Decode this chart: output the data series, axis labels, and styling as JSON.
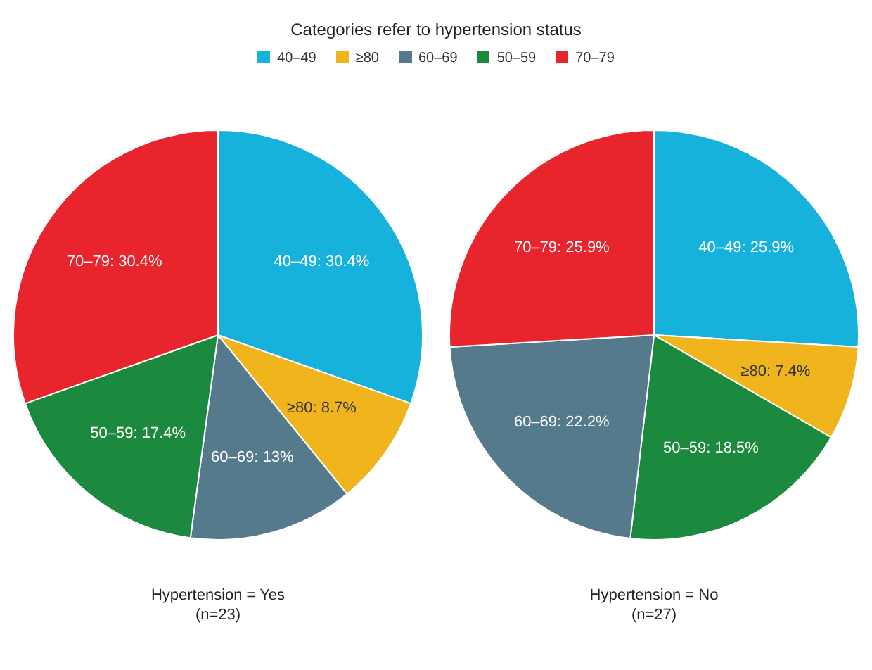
{
  "chart_data": [
    {
      "type": "pie",
      "title": "Categories refer to hypertension status",
      "legend": "top",
      "xlabel": "Hypertension = Yes\n(n=23)",
      "categories": [
        "40–49",
        "≥80",
        "60–69",
        "50–59",
        "70–79"
      ],
      "values": [
        30.4,
        8.7,
        13,
        17.4,
        30.4
      ],
      "colors": [
        "#17b2dc",
        "#f0b41c",
        "#557a8c",
        "#1b8a3e",
        "#e8242c"
      ],
      "value_labels": [
        "40–49: 30.4%",
        "≥80: 8.7%",
        "60–69: 13%",
        "50–59: 17.4%",
        "70–79: 30.4%"
      ]
    },
    {
      "type": "pie",
      "xlabel": "Hypertension = No\n(n=27)",
      "categories": [
        "40–49",
        "≥80",
        "50–59",
        "60–69",
        "70–79"
      ],
      "values": [
        25.9,
        7.4,
        18.5,
        22.2,
        25.9
      ],
      "colors": [
        "#17b2dc",
        "#f0b41c",
        "#1b8a3e",
        "#557a8c",
        "#e8242c"
      ],
      "value_labels": [
        "25.9%",
        "7.4%",
        "18.5%",
        "22.2%",
        "25.9%"
      ]
    }
  ]
}
